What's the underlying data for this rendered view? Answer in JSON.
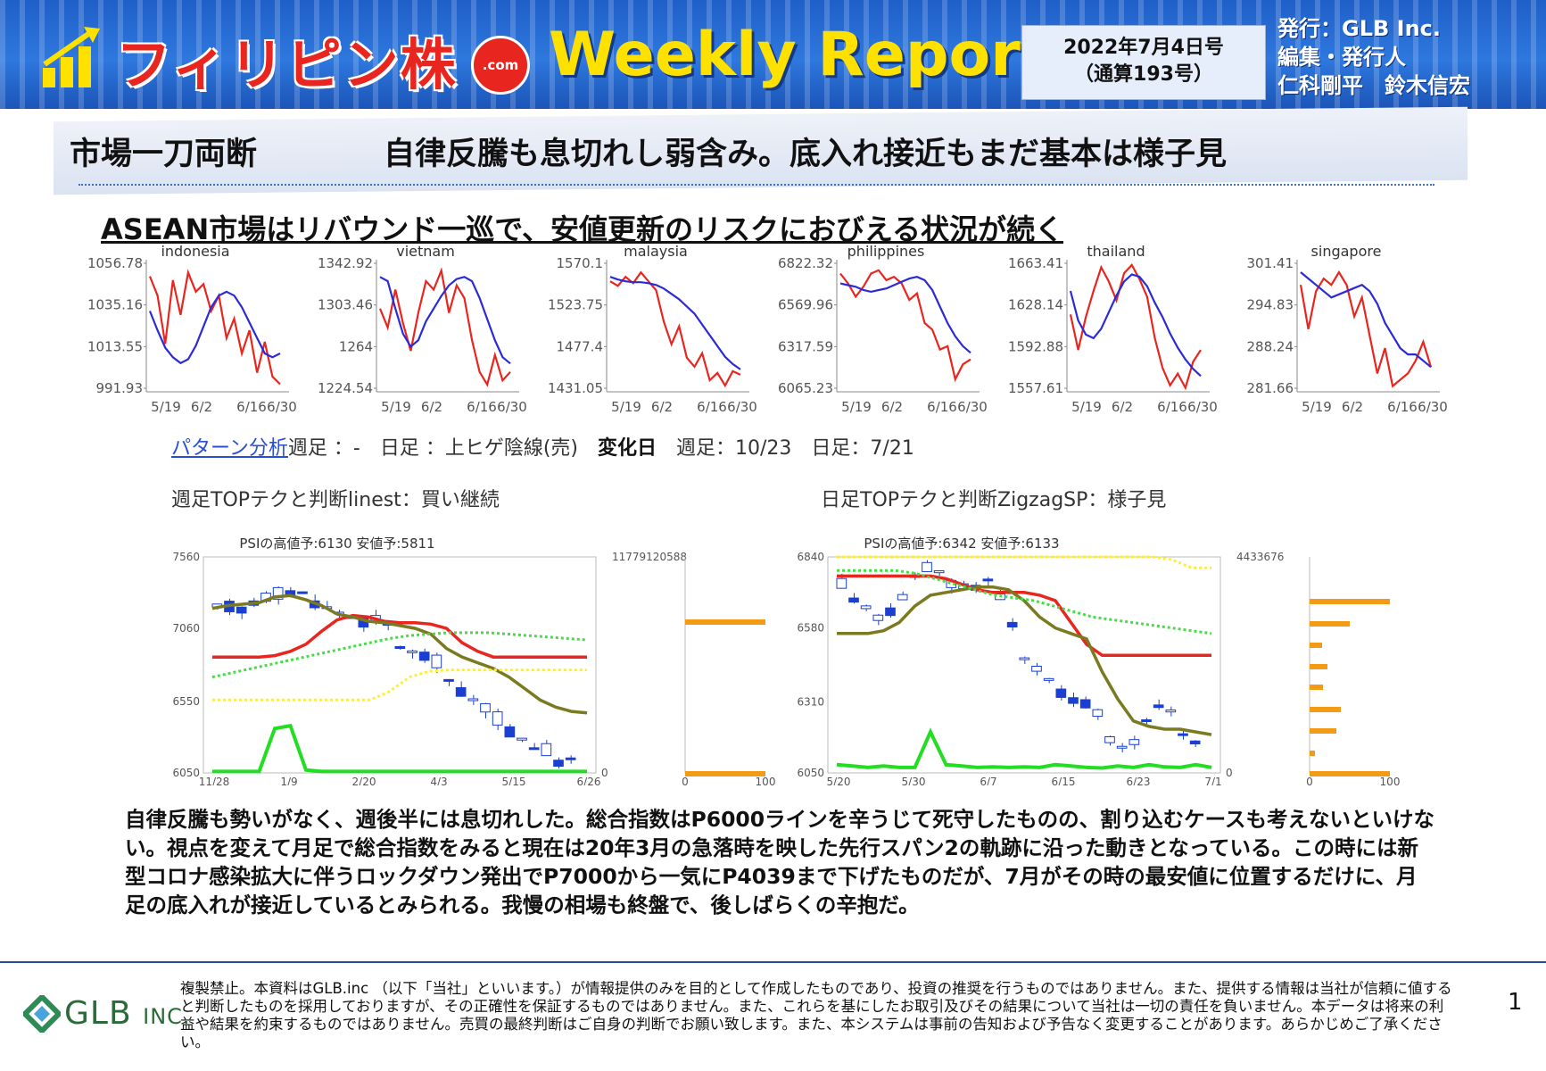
{
  "header": {
    "brand": "フィリピン株",
    "brand_suffix": ".com",
    "title": "Weekly Report",
    "issue_date": "2022年7月4日号",
    "issue_number": "（通算193号）",
    "publisher_line1": "発行：GLB Inc.",
    "publisher_line2": "編集・発行人",
    "publisher_line3": "仁科剛平　鈴木信宏"
  },
  "headline": {
    "section": "市場一刀両断",
    "title": "自律反騰も息切れし弱含み。底入れ接近もまだ基本は様子見"
  },
  "subheadline": "ASEAN市場はリバウンド一巡で、安値更新のリスクにおびえる状況が続く",
  "pattern": {
    "link": "パターン分析",
    "text1": "週足 ：-　日足 ：上ヒゲ陰線(売)　",
    "bold": "変化日",
    "text2": "　週足：10/23　日足：7/21"
  },
  "captions": {
    "weekly": "週足TOPテクと判断linest：買い継続",
    "daily": "日足TOPテクと判断ZigzagSP：様子見"
  },
  "chart_data": [
    {
      "type": "line",
      "title": "indonesia",
      "yticks": [
        "1056.78",
        "1035.16",
        "1013.55",
        "991.93"
      ],
      "xticks": [
        "5/19",
        "6/2",
        "6/16",
        "6/30"
      ],
      "ylim": [
        991.93,
        1056.78
      ],
      "series": [
        {
          "color": "#e8261f",
          "values": [
            1050,
            1040,
            1015,
            1048,
            1030,
            1052,
            1042,
            1046,
            1032,
            1040,
            1018,
            1028,
            1010,
            1022,
            1000,
            1016,
            998,
            994
          ]
        },
        {
          "color": "#2b2bd6",
          "values": [
            1032,
            1022,
            1013,
            1008,
            1005,
            1007,
            1014,
            1024,
            1034,
            1040,
            1042,
            1040,
            1034,
            1026,
            1018,
            1010,
            1008,
            1010
          ]
        }
      ]
    },
    {
      "type": "line",
      "title": "vietnam",
      "yticks": [
        "1342.92",
        "1303.46",
        "1264",
        "1224.54"
      ],
      "xticks": [
        "5/19",
        "6/2",
        "6/16",
        "6/30"
      ],
      "ylim": [
        1224.54,
        1342.92
      ],
      "series": [
        {
          "color": "#e8261f",
          "values": [
            1300,
            1282,
            1318,
            1286,
            1260,
            1296,
            1326,
            1318,
            1336,
            1296,
            1322,
            1310,
            1270,
            1240,
            1228,
            1256,
            1232,
            1240
          ]
        },
        {
          "color": "#2b2bd6",
          "values": [
            1330,
            1326,
            1300,
            1276,
            1264,
            1270,
            1288,
            1300,
            1312,
            1322,
            1328,
            1330,
            1326,
            1310,
            1290,
            1270,
            1254,
            1248
          ]
        }
      ]
    },
    {
      "type": "line",
      "title": "malaysia",
      "yticks": [
        "1570.1",
        "1523.75",
        "1477.4",
        "1431.05"
      ],
      "xticks": [
        "5/19",
        "6/2",
        "6/16",
        "6/30"
      ],
      "ylim": [
        1431.05,
        1570.1
      ],
      "series": [
        {
          "color": "#e8261f",
          "values": [
            1550,
            1545,
            1555,
            1548,
            1560,
            1550,
            1540,
            1505,
            1480,
            1500,
            1465,
            1455,
            1470,
            1440,
            1448,
            1434,
            1450,
            1446
          ]
        },
        {
          "color": "#2b2bd6",
          "values": [
            1555,
            1552,
            1550,
            1549,
            1549,
            1548,
            1546,
            1542,
            1536,
            1530,
            1522,
            1514,
            1502,
            1490,
            1478,
            1466,
            1458,
            1452
          ]
        }
      ]
    },
    {
      "type": "line",
      "title": "philippines",
      "yticks": [
        "6822.32",
        "6569.96",
        "6317.59",
        "6065.23"
      ],
      "xticks": [
        "5/19",
        "6/2",
        "6/16",
        "6/30"
      ],
      "ylim": [
        6065.23,
        6822.32
      ],
      "series": [
        {
          "color": "#e8261f",
          "values": [
            6760,
            6700,
            6620,
            6680,
            6760,
            6780,
            6720,
            6740,
            6700,
            6600,
            6640,
            6460,
            6420,
            6300,
            6320,
            6120,
            6210,
            6240
          ]
        },
        {
          "color": "#2b2bd6",
          "values": [
            6700,
            6690,
            6680,
            6660,
            6650,
            6660,
            6670,
            6690,
            6710,
            6730,
            6740,
            6720,
            6660,
            6560,
            6460,
            6380,
            6320,
            6280
          ]
        }
      ]
    },
    {
      "type": "line",
      "title": "thailand",
      "yticks": [
        "1663.41",
        "1628.14",
        "1592.88",
        "1557.61"
      ],
      "xticks": [
        "5/19",
        "6/2",
        "6/16",
        "6/30"
      ],
      "ylim": [
        1557.61,
        1663.41
      ],
      "series": [
        {
          "color": "#e8261f",
          "values": [
            1620,
            1590,
            1618,
            1640,
            1660,
            1648,
            1632,
            1655,
            1662,
            1650,
            1635,
            1600,
            1575,
            1560,
            1570,
            1558,
            1580,
            1590
          ]
        },
        {
          "color": "#2b2bd6",
          "values": [
            1640,
            1615,
            1603,
            1600,
            1608,
            1622,
            1636,
            1648,
            1654,
            1652,
            1644,
            1630,
            1618,
            1604,
            1592,
            1582,
            1574,
            1568
          ]
        }
      ]
    },
    {
      "type": "line",
      "title": "singapore",
      "yticks": [
        "301.41",
        "294.83",
        "288.24",
        "281.66"
      ],
      "xticks": [
        "5/19",
        "6/2",
        "6/16",
        "6/30"
      ],
      "ylim": [
        281.66,
        301.41
      ],
      "series": [
        {
          "color": "#e8261f",
          "values": [
            298,
            291,
            297,
            299,
            298,
            300,
            298,
            293,
            296,
            290,
            284,
            288,
            282,
            283,
            284,
            286,
            289,
            285
          ]
        },
        {
          "color": "#2b2bd6",
          "values": [
            300,
            299,
            298,
            297,
            296,
            296.5,
            297,
            297.5,
            298,
            297,
            295,
            292,
            290,
            288,
            287,
            287,
            286,
            285
          ]
        }
      ]
    },
    {
      "type": "bar",
      "title": "PSIの高値予:6130 安値予:5811",
      "yticks": [
        "7560",
        "7060",
        "6550",
        "6050"
      ],
      "xticks": [
        "11/28",
        "1/9",
        "2/20",
        "4/3",
        "5/15",
        "6/26"
      ],
      "ylim": [
        6050,
        7560
      ],
      "right_axis": "11779120588",
      "volume_axis": [
        "0",
        "100"
      ]
    },
    {
      "type": "bar",
      "title": "PSIの高値予:6342 安値予:6133",
      "yticks": [
        "6840",
        "6580",
        "6310",
        "6050"
      ],
      "xticks": [
        "5/20",
        "5/30",
        "6/7",
        "6/15",
        "6/23",
        "7/1"
      ],
      "ylim": [
        6050,
        6840
      ],
      "right_axis": "4433676",
      "volume_axis": [
        "0",
        "100"
      ]
    }
  ],
  "body": "自律反騰も勢いがなく、週後半には息切れした。総合指数はP6000ラインを辛うじて死守したものの、割り込むケースも考えないといけない。視点を変えて月足で総合指数をみると現在は20年3月の急落時を映した先行スパン2の軌跡に沿った動きとなっている。この時には新型コロナ感染拡大に伴うロックダウン発出でP7000から一気にP4039まで下げたものだが、7月がその時の最安値に位置するだけに、月足の底入れが接近しているとみられる。我慢の相場も終盤で、後しばらくの辛抱だ。",
  "footer": {
    "company": "GLB",
    "company_suffix": "INC.",
    "disclaimer": "複製禁止。本資料はGLB.inc （以下「当社」といいます。）が情報提供のみを目的として作成したものであり、投資の推奨を行うものではありません。また、提供する情報は当社が信頼に値すると判断したものを採用しておりますが、その正確性を保証するものではありません。また、これらを基にしたお取引及びその結果について当社は一切の責任を負いません。本データは将来の利益や結果を約束するものではありません。売買の最終判断はご自身の判断でお願い致します。また、本システムは事前の告知および予告なく変更することがあります。あらかじめご了承ください。",
    "page": "1"
  },
  "colors": {
    "header_blue": "#2e78de",
    "brand_red": "#e8261f",
    "title_yellow": "#ffe100"
  }
}
